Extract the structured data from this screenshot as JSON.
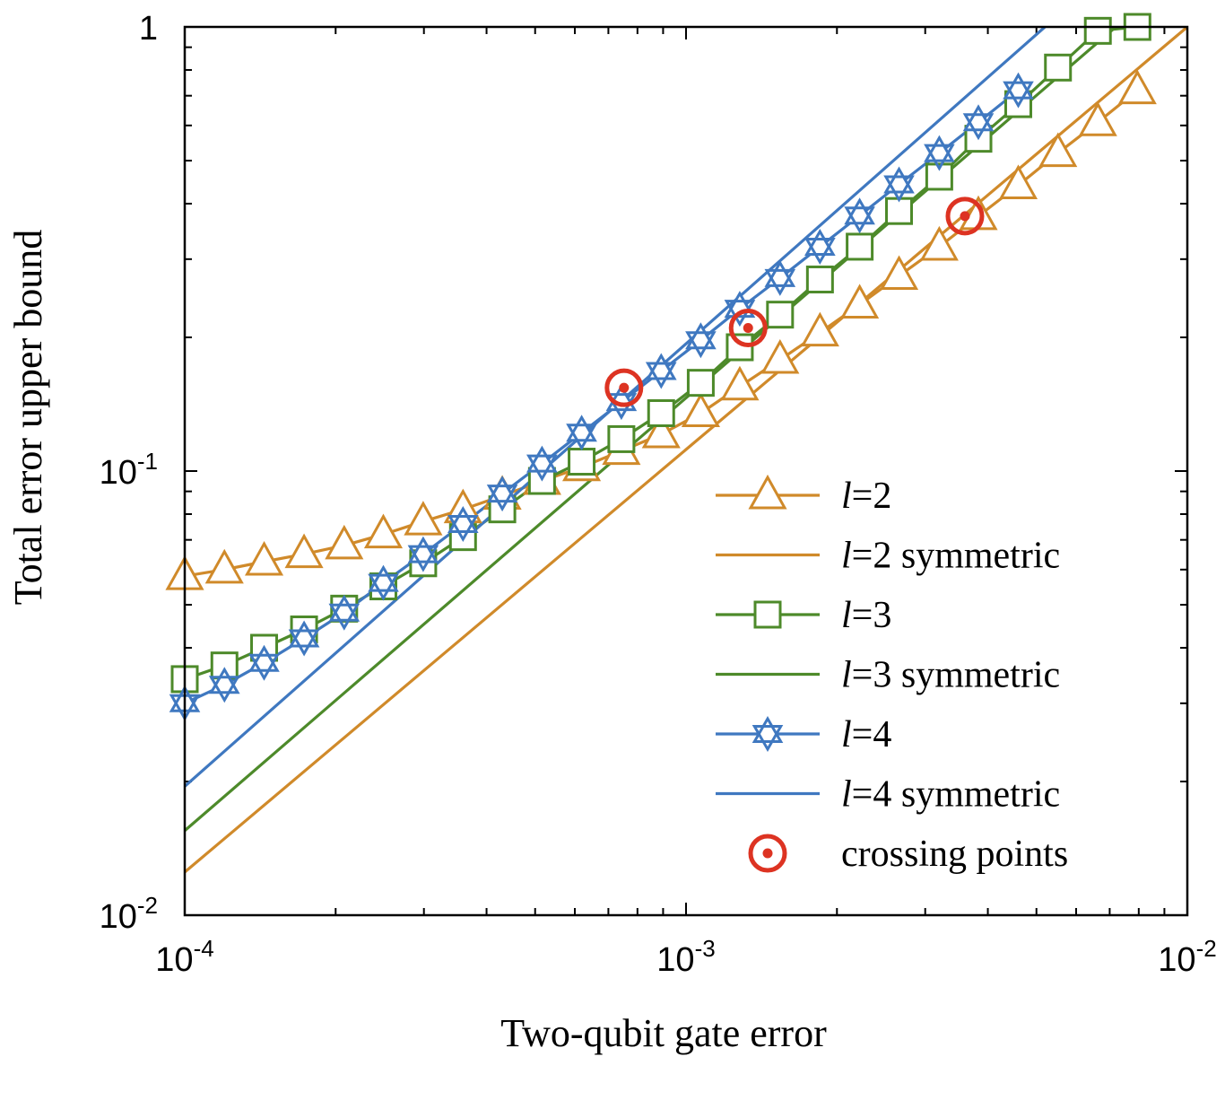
{
  "chart_data": {
    "type": "line",
    "xscale": "log",
    "yscale": "log",
    "xlabel": "Two-qubit gate error",
    "ylabel": "Total error upper bound",
    "xlim": [
      0.0001,
      0.01
    ],
    "ylim": [
      0.01,
      1
    ],
    "x_ticks": [
      {
        "value": 0.0001,
        "base": "10",
        "exp": "-4"
      },
      {
        "value": 0.001,
        "base": "10",
        "exp": "-3"
      },
      {
        "value": 0.01,
        "base": "10",
        "exp": "-2"
      }
    ],
    "y_ticks": [
      {
        "value": 0.01,
        "base": "10",
        "exp": "-2"
      },
      {
        "value": 0.1,
        "base": "10",
        "exp": "-1"
      },
      {
        "value": 1,
        "base": "1",
        "exp": ""
      }
    ],
    "colors": {
      "l2": "#d08a2a",
      "l3": "#4d8a2a",
      "l4": "#3f78c0",
      "crossing": "#dd3322"
    },
    "series": [
      {
        "name_prefix": "l",
        "name_suffix": "=2",
        "color": "#d08a2a",
        "marker": "triangle",
        "x": [
          0.0001,
          0.00012,
          0.000144,
          0.000173,
          0.000208,
          0.000249,
          0.000299,
          0.000359,
          0.00043,
          0.000516,
          0.000619,
          0.000743,
          0.000892,
          0.00107,
          0.00128,
          0.00154,
          0.00185,
          0.00222,
          0.00266,
          0.0032,
          0.00383,
          0.0046,
          0.00552,
          0.00663,
          0.00795
        ],
        "y": [
          0.058,
          0.06,
          0.0625,
          0.065,
          0.068,
          0.072,
          0.077,
          0.082,
          0.088,
          0.095,
          0.102,
          0.111,
          0.121,
          0.135,
          0.155,
          0.178,
          0.205,
          0.237,
          0.275,
          0.32,
          0.375,
          0.44,
          0.52,
          0.61,
          0.72
        ]
      },
      {
        "name_prefix": "l",
        "name_suffix": "=2 symmetric",
        "color": "#d08a2a",
        "marker": "none",
        "x": [
          0.0001,
          0.01
        ],
        "y": [
          0.0125,
          1.0
        ]
      },
      {
        "name_prefix": "l",
        "name_suffix": "=3",
        "color": "#4d8a2a",
        "marker": "square",
        "x": [
          0.0001,
          0.00012,
          0.000144,
          0.000173,
          0.000208,
          0.000249,
          0.000299,
          0.000359,
          0.00043,
          0.000516,
          0.000619,
          0.000743,
          0.000892,
          0.00107,
          0.00128,
          0.00154,
          0.00185,
          0.00222,
          0.00266,
          0.0032,
          0.00383,
          0.0046,
          0.00552,
          0.00663,
          0.00795
        ],
        "y": [
          0.034,
          0.0365,
          0.04,
          0.044,
          0.049,
          0.055,
          0.062,
          0.071,
          0.082,
          0.095,
          0.105,
          0.118,
          0.135,
          0.158,
          0.19,
          0.225,
          0.27,
          0.32,
          0.385,
          0.46,
          0.56,
          0.67,
          0.81,
          0.98,
          1.0
        ]
      },
      {
        "name_prefix": "l",
        "name_suffix": "=3 symmetric",
        "color": "#4d8a2a",
        "marker": "none",
        "x": [
          0.0001,
          0.0072
        ],
        "y": [
          0.0155,
          1.0
        ]
      },
      {
        "name_prefix": "l",
        "name_suffix": "=4",
        "color": "#3f78c0",
        "marker": "star",
        "x": [
          0.0001,
          0.00012,
          0.000144,
          0.000173,
          0.000208,
          0.000249,
          0.000299,
          0.000359,
          0.00043,
          0.000516,
          0.000619,
          0.000743,
          0.000892,
          0.00107,
          0.00128,
          0.00154,
          0.00185,
          0.00222,
          0.00266,
          0.0032,
          0.00383,
          0.0046
        ],
        "y": [
          0.03,
          0.033,
          0.037,
          0.042,
          0.048,
          0.056,
          0.065,
          0.076,
          0.089,
          0.104,
          0.122,
          0.143,
          0.168,
          0.197,
          0.232,
          0.272,
          0.32,
          0.376,
          0.442,
          0.52,
          0.61,
          0.72
        ]
      },
      {
        "name_prefix": "l",
        "name_suffix": "=4 symmetric",
        "color": "#3f78c0",
        "marker": "none",
        "x": [
          0.0001,
          0.0052
        ],
        "y": [
          0.0195,
          1.0
        ]
      }
    ],
    "crossing_points": {
      "label": "crossing points",
      "color": "#dd3322",
      "x": [
        0.000752,
        0.00133,
        0.0036
      ],
      "y": [
        0.154,
        0.21,
        0.375
      ]
    }
  }
}
